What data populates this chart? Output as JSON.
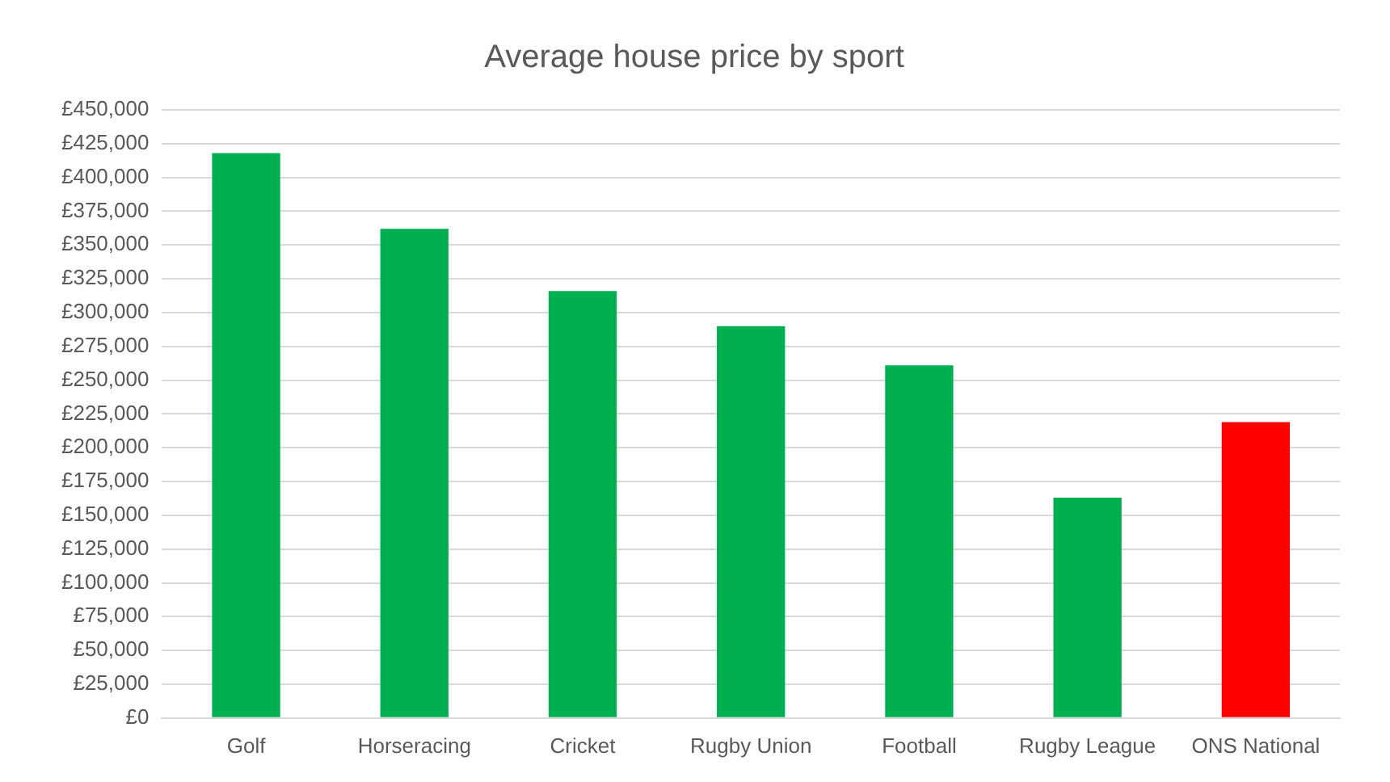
{
  "chart_data": {
    "type": "bar",
    "title": "Average house price by sport",
    "categories": [
      "Golf",
      "Horseracing",
      "Cricket",
      "Rugby Union",
      "Football",
      "Rugby League",
      "ONS National"
    ],
    "values": [
      418000,
      362000,
      316000,
      290000,
      261000,
      163000,
      219000
    ],
    "colors": [
      "#00b050",
      "#00b050",
      "#00b050",
      "#00b050",
      "#00b050",
      "#00b050",
      "#ff0000"
    ],
    "ylim": [
      0,
      450000
    ],
    "yticks": [
      {
        "value": 0,
        "label": "£0"
      },
      {
        "value": 25000,
        "label": "£25,000"
      },
      {
        "value": 50000,
        "label": "£50,000"
      },
      {
        "value": 75000,
        "label": "£75,000"
      },
      {
        "value": 100000,
        "label": "£100,000"
      },
      {
        "value": 125000,
        "label": "£125,000"
      },
      {
        "value": 150000,
        "label": "£150,000"
      },
      {
        "value": 175000,
        "label": "£175,000"
      },
      {
        "value": 200000,
        "label": "£200,000"
      },
      {
        "value": 225000,
        "label": "£225,000"
      },
      {
        "value": 250000,
        "label": "£250,000"
      },
      {
        "value": 275000,
        "label": "£275,000"
      },
      {
        "value": 300000,
        "label": "£300,000"
      },
      {
        "value": 325000,
        "label": "£325,000"
      },
      {
        "value": 350000,
        "label": "£350,000"
      },
      {
        "value": 375000,
        "label": "£375,000"
      },
      {
        "value": 400000,
        "label": "£400,000"
      },
      {
        "value": 425000,
        "label": "£425,000"
      },
      {
        "value": 450000,
        "label": "£450,000"
      }
    ],
    "grid": "y"
  }
}
